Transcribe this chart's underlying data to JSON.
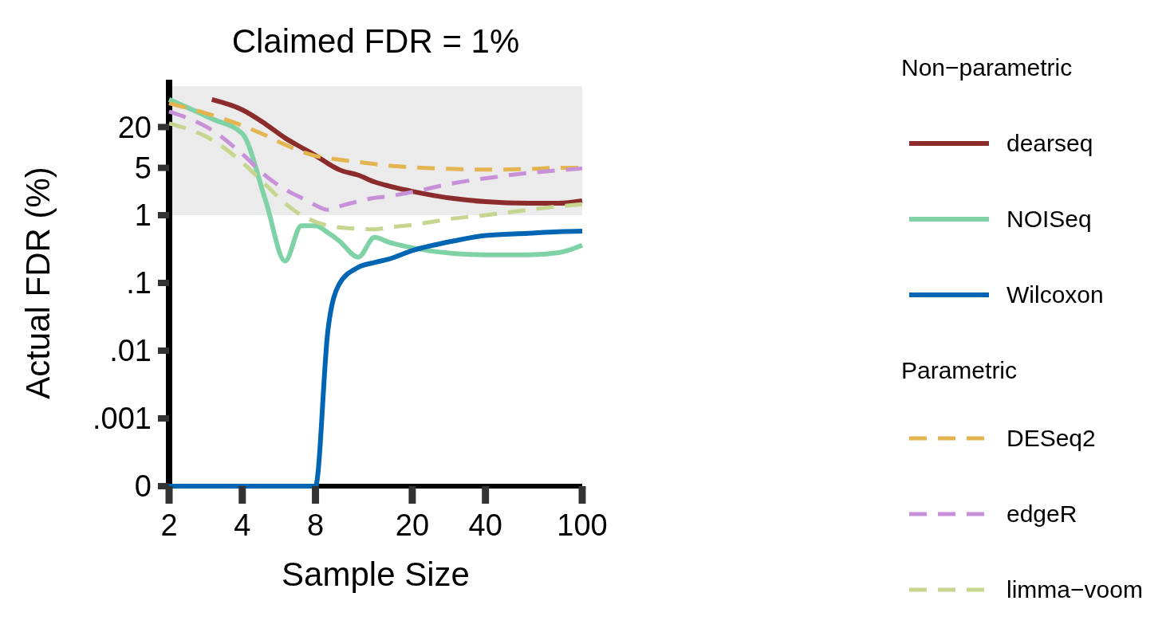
{
  "chart_data": {
    "type": "line",
    "title": "Claimed FDR = 1%",
    "xlabel": "Sample Size",
    "ylabel": "Actual FDR (%)",
    "legend_title": "Non−parametric",
    "annotations": [
      "Parametric"
    ],
    "log": "xy",
    "xlim": [
      2,
      100
    ],
    "xticks": [
      2,
      4,
      8,
      20,
      40,
      100
    ],
    "ylim": [
      0.0001,
      100
    ],
    "yticks": [
      {
        "value": 0.0001,
        "label": "0"
      },
      {
        "value": 0.001,
        "label": ".001"
      },
      {
        "value": 0.01,
        "label": ".01"
      },
      {
        "value": 0.1,
        "label": ".1"
      },
      1,
      5,
      20
    ],
    "bands": [
      {
        "axis": "y",
        "from": 1,
        "to": 80,
        "color": "#ebebeb"
      }
    ],
    "legend": "right",
    "grid": false,
    "x": [
      2,
      3,
      4,
      5,
      6,
      7,
      8,
      9,
      10,
      12,
      14,
      16,
      20,
      30,
      40,
      60,
      80,
      100
    ],
    "series": [
      {
        "name": "dearseq",
        "color": "#8b2b2b",
        "line_style": "solid",
        "values": [
          null,
          51,
          36,
          22,
          13.8,
          10,
          7.6,
          5.8,
          4.7,
          3.9,
          3.1,
          2.7,
          2.25,
          1.75,
          1.58,
          1.5,
          1.5,
          1.63
        ]
      },
      {
        "name": "NOISeq",
        "color": "#7fd1a6",
        "line_style": "solid",
        "values": [
          51,
          26.5,
          16,
          1.6,
          0.21,
          0.7,
          0.7,
          0.55,
          0.42,
          0.24,
          0.47,
          0.4,
          0.33,
          0.27,
          0.26,
          0.26,
          0.28,
          0.36
        ]
      },
      {
        "name": "Wilcoxon",
        "color": "#0066b3",
        "line_style": "solid",
        "values": [
          0.0001,
          0.0001,
          0.0001,
          0.0001,
          0.0001,
          0.0001,
          0.0001,
          0.02,
          0.095,
          0.17,
          0.2,
          0.225,
          0.3,
          0.42,
          0.5,
          0.54,
          0.57,
          0.58
        ]
      },
      {
        "name": "DESeq2",
        "color": "#e3b550",
        "line_style": "dashed",
        "values": [
          45,
          30,
          21,
          15,
          11,
          8.7,
          7.5,
          7,
          6.6,
          6.1,
          5.7,
          5.4,
          5.1,
          4.8,
          4.7,
          4.8,
          5,
          5
        ]
      },
      {
        "name": "edgeR",
        "color": "#c890d8",
        "line_style": "dashed",
        "values": [
          34,
          18,
          8,
          3.8,
          2.4,
          1.8,
          1.4,
          1.2,
          1.35,
          1.6,
          1.8,
          1.9,
          2.2,
          3,
          3.5,
          4.2,
          4.6,
          4.9
        ]
      },
      {
        "name": "limma−voom",
        "color": "#c6d690",
        "line_style": "dashed",
        "values": [
          22.6,
          13,
          6,
          2.8,
          1.5,
          1,
          0.8,
          0.7,
          0.66,
          0.63,
          0.62,
          0.66,
          0.72,
          0.9,
          1,
          1.2,
          1.35,
          1.45
        ]
      }
    ]
  }
}
